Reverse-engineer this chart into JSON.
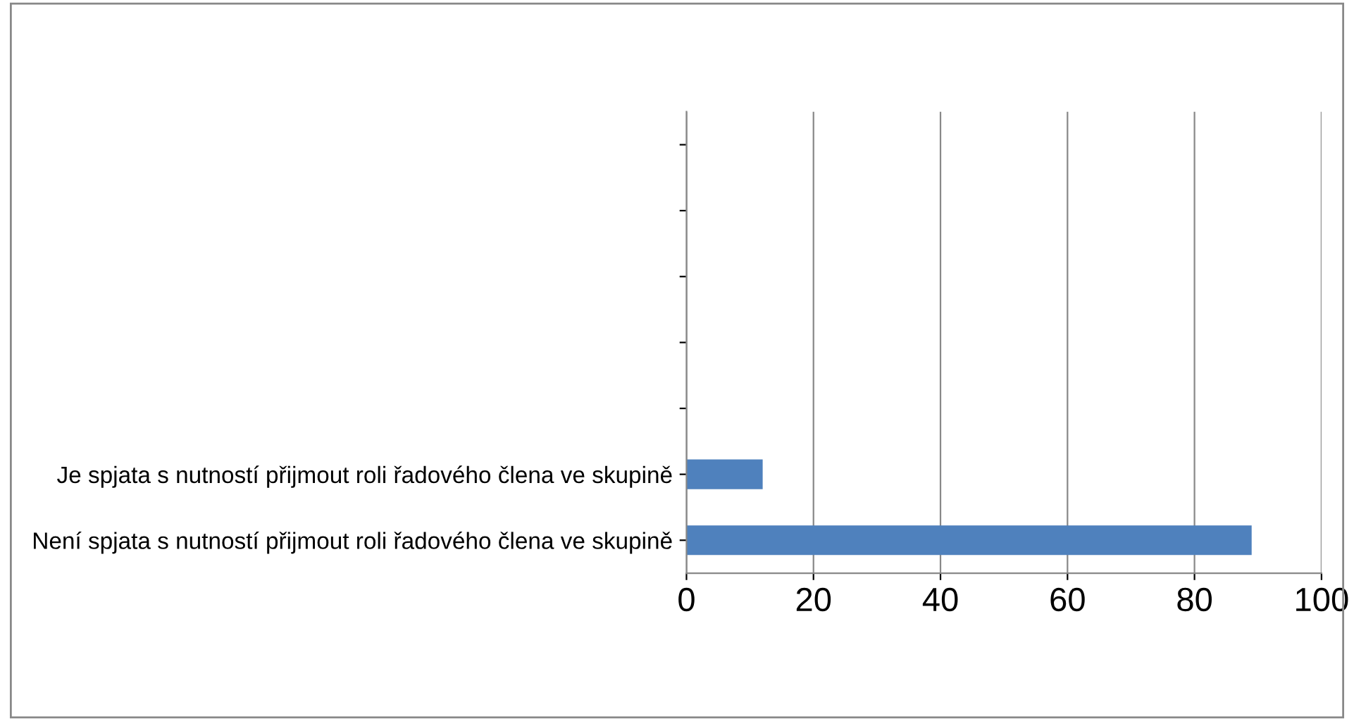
{
  "chart_data": {
    "type": "bar",
    "orientation": "horizontal",
    "categories": [
      null,
      null,
      null,
      null,
      null,
      "Je spjata s nutností přijmout roli řadového člena ve skupině",
      "Není spjata s nutností přijmout roli řadového člena ve skupině"
    ],
    "values": [
      null,
      null,
      null,
      null,
      null,
      12,
      89
    ],
    "color": "#4f81bd",
    "xlim": [
      0,
      100
    ],
    "xticks": [
      0,
      20,
      40,
      60,
      80,
      100
    ],
    "grid": "x",
    "legend": false
  }
}
